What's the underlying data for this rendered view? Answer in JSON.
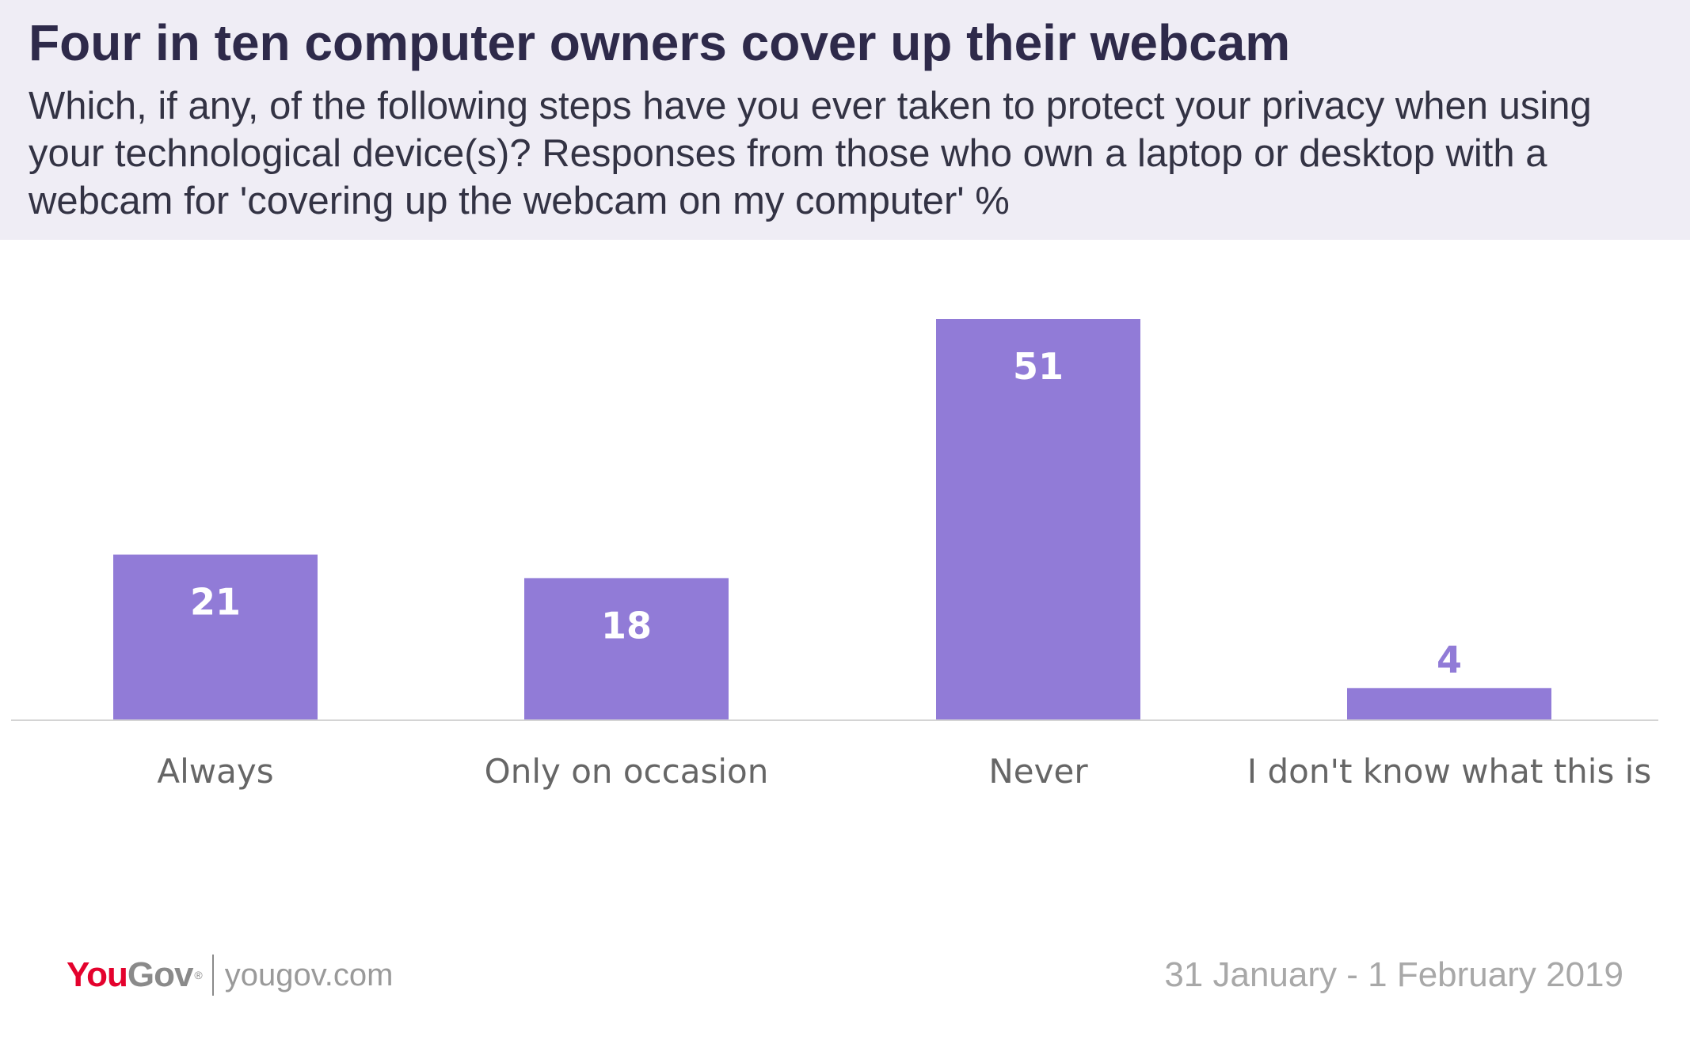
{
  "header": {
    "title": "Four in ten computer owners cover up their webcam",
    "subtitle": "Which, if any, of the following steps have you ever taken to protect your privacy when using your technological device(s)? Responses from those who own a laptop or desktop with a webcam for 'covering up the webcam on my computer' %"
  },
  "chart_data": {
    "type": "bar",
    "categories": [
      "Always",
      "Only on occasion",
      "Never",
      "I don't know what this is"
    ],
    "values": [
      21,
      18,
      51,
      4
    ],
    "ylim": [
      0,
      55
    ],
    "grid": false,
    "bar_color": "#917bd7",
    "label_color_inside": "#ffffff",
    "label_color_outside": "#917bd7"
  },
  "footer": {
    "logo_you": "You",
    "logo_gov": "Gov",
    "logo_reg": "®",
    "url": "yougov.com",
    "date": "31 January - 1 February 2019"
  }
}
